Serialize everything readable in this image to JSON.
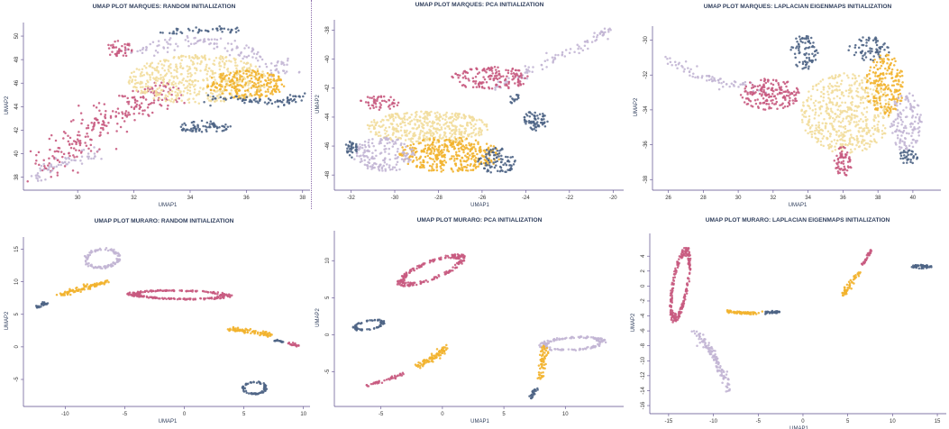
{
  "colors": {
    "rose": "#c85a80",
    "lavender": "#c2b5d4",
    "cream": "#f2dd9c",
    "gold": "#f2b22e",
    "slate": "#4e6485",
    "axis": "#5a4a8a",
    "title": "#2f3e5c"
  },
  "chart_data": [
    {
      "type": "scatter",
      "title": "UMAP PLOT MARQUES: RANDOM INITIALIZATION",
      "xlabel": "UMAP1",
      "ylabel": "UMAP2",
      "xlim": [
        28.2,
        38.2
      ],
      "ylim": [
        37.2,
        51
      ],
      "xticks": [
        30,
        32,
        34,
        36,
        38
      ],
      "yticks": [
        38,
        40,
        42,
        44,
        46,
        48,
        50
      ],
      "clusters": [
        {
          "color": "rose",
          "type": "arc",
          "points": [
            [
              28.8,
              38.8
            ],
            [
              29.6,
              40.4
            ],
            [
              30.5,
              42.0
            ],
            [
              31.5,
              43.3
            ],
            [
              32.4,
              44.5
            ],
            [
              33.3,
              45.5
            ]
          ],
          "width": 1.2,
          "n": 260
        },
        {
          "color": "rose",
          "type": "blob",
          "cx": 31.5,
          "cy": 48.9,
          "rx": 0.5,
          "ry": 0.7,
          "n": 45
        },
        {
          "color": "lavender",
          "type": "arc",
          "points": [
            [
              28.4,
              37.8
            ],
            [
              29.0,
              38.8
            ],
            [
              29.8,
              39.5
            ],
            [
              30.6,
              40.0
            ]
          ],
          "width": 0.6,
          "n": 60
        },
        {
          "color": "lavender",
          "type": "arc",
          "points": [
            [
              32.2,
              48.5
            ],
            [
              33.5,
              49.6
            ],
            [
              35.0,
              49.4
            ],
            [
              36.3,
              48.4
            ],
            [
              37.4,
              46.8
            ]
          ],
          "width": 0.7,
          "n": 130
        },
        {
          "color": "cream",
          "type": "blob",
          "cx": 34.3,
          "cy": 46.3,
          "rx": 2.5,
          "ry": 2.1,
          "n": 520
        },
        {
          "color": "gold",
          "type": "blob",
          "cx": 36.0,
          "cy": 45.9,
          "rx": 1.4,
          "ry": 1.2,
          "n": 230
        },
        {
          "color": "slate",
          "type": "blob",
          "cx": 34.5,
          "cy": 42.3,
          "rx": 1.0,
          "ry": 0.5,
          "n": 75
        },
        {
          "color": "slate",
          "type": "arc",
          "points": [
            [
              34.8,
              44.7
            ],
            [
              36.0,
              44.5
            ],
            [
              37.3,
              44.4
            ],
            [
              38.0,
              45.0
            ]
          ],
          "width": 0.4,
          "n": 80
        },
        {
          "color": "slate",
          "type": "arc",
          "points": [
            [
              33.0,
              50.3
            ],
            [
              34.5,
              50.5
            ],
            [
              35.8,
              50.6
            ]
          ],
          "width": 0.3,
          "n": 45
        }
      ]
    },
    {
      "type": "scatter",
      "title": "UMAP PLOT MARQUES: PCA INITIALIZATION",
      "xlabel": "UMAP1",
      "ylabel": "UMAP2",
      "xlim": [
        -32.6,
        -19.6
      ],
      "ylim": [
        -48.8,
        -37.4
      ],
      "xticks": [
        -32,
        -30,
        -28,
        -26,
        -24,
        -22,
        -20
      ],
      "yticks": [
        -38,
        -40,
        -42,
        -44,
        -46,
        -48
      ],
      "clusters": [
        {
          "color": "lavender",
          "type": "arc",
          "points": [
            [
              -25.5,
              -42.0
            ],
            [
              -23.8,
              -40.8
            ],
            [
              -22.0,
              -39.5
            ],
            [
              -20.2,
              -38.0
            ]
          ],
          "width": 0.4,
          "n": 90
        },
        {
          "color": "rose",
          "type": "blob",
          "cx": -25.6,
          "cy": -41.3,
          "rx": 1.8,
          "ry": 0.8,
          "n": 160
        },
        {
          "color": "rose",
          "type": "blob",
          "cx": -30.7,
          "cy": -43.0,
          "rx": 0.9,
          "ry": 0.5,
          "n": 50
        },
        {
          "color": "slate",
          "type": "blob",
          "cx": -23.6,
          "cy": -44.3,
          "rx": 0.6,
          "ry": 0.7,
          "n": 70
        },
        {
          "color": "slate",
          "type": "arc",
          "points": [
            [
              -24.6,
              -43.0
            ],
            [
              -24.2,
              -42.1
            ]
          ],
          "width": 0.2,
          "n": 15
        },
        {
          "color": "cream",
          "type": "blob",
          "cx": -28.5,
          "cy": -44.7,
          "rx": 2.8,
          "ry": 1.1,
          "n": 420
        },
        {
          "color": "gold",
          "type": "blob",
          "cx": -27.5,
          "cy": -46.6,
          "rx": 2.4,
          "ry": 1.2,
          "n": 380
        },
        {
          "color": "lavender",
          "type": "blob",
          "cx": -30.5,
          "cy": -46.6,
          "rx": 1.4,
          "ry": 1.2,
          "n": 160
        },
        {
          "color": "slate",
          "type": "blob",
          "cx": -25.3,
          "cy": -47.0,
          "rx": 0.9,
          "ry": 0.9,
          "n": 90
        },
        {
          "color": "slate",
          "type": "blob",
          "cx": -32.0,
          "cy": -46.2,
          "rx": 0.3,
          "ry": 0.6,
          "n": 35
        }
      ]
    },
    {
      "type": "scatter",
      "title": "UMAP PLOT MARQUES: LAPLACIAN EIGENMAPS INITIALIZATION",
      "xlabel": "UMAP1",
      "ylabel": "UMAP2",
      "xlim": [
        25.3,
        41.5
      ],
      "ylim": [
        -38.4,
        -29.3
      ],
      "xticks": [
        26,
        28,
        30,
        32,
        34,
        36,
        38,
        40
      ],
      "yticks": [
        -30,
        -32,
        -34,
        -36,
        -38
      ],
      "clusters": [
        {
          "color": "lavender",
          "type": "arc",
          "points": [
            [
              25.9,
              -31.0
            ],
            [
              27.2,
              -31.8
            ],
            [
              28.6,
              -32.3
            ],
            [
              30.0,
              -32.6
            ],
            [
              31.5,
              -32.8
            ]
          ],
          "width": 0.35,
          "n": 75
        },
        {
          "color": "rose",
          "type": "blob",
          "cx": 31.8,
          "cy": -33.1,
          "rx": 1.7,
          "ry": 0.9,
          "n": 180
        },
        {
          "color": "slate",
          "type": "blob",
          "cx": 33.8,
          "cy": -30.7,
          "rx": 0.8,
          "ry": 1.0,
          "n": 80
        },
        {
          "color": "slate",
          "type": "blob",
          "cx": 37.5,
          "cy": -30.5,
          "rx": 1.2,
          "ry": 0.7,
          "n": 70
        },
        {
          "color": "cream",
          "type": "blob",
          "cx": 36.2,
          "cy": -34.2,
          "rx": 2.6,
          "ry": 2.3,
          "n": 520
        },
        {
          "color": "gold",
          "type": "blob",
          "cx": 38.4,
          "cy": -32.6,
          "rx": 1.1,
          "ry": 1.8,
          "n": 200
        },
        {
          "color": "lavender",
          "type": "blob",
          "cx": 39.6,
          "cy": -34.7,
          "rx": 0.9,
          "ry": 1.7,
          "n": 130
        },
        {
          "color": "rose",
          "type": "blob",
          "cx": 36.0,
          "cy": -37.0,
          "rx": 0.5,
          "ry": 0.9,
          "n": 65
        },
        {
          "color": "slate",
          "type": "blob",
          "cx": 39.7,
          "cy": -36.7,
          "rx": 0.6,
          "ry": 0.4,
          "n": 35
        }
      ]
    },
    {
      "type": "scatter",
      "title": "UMAP PLOT MURARO: RANDOM INITIALIZATION",
      "xlabel": "UMAP1",
      "ylabel": "UMAP2",
      "xlim": [
        -13.2,
        10.4
      ],
      "ylim": [
        -8.6,
        16.6
      ],
      "xticks": [
        -10,
        -5,
        0,
        5,
        10
      ],
      "yticks": [
        -5,
        0,
        5,
        10,
        15
      ],
      "clusters": [
        {
          "color": "lavender",
          "type": "ring",
          "cx": -6.9,
          "cy": 13.6,
          "rx": 1.4,
          "ry": 1.6,
          "angle": -40,
          "n": 110
        },
        {
          "color": "gold",
          "type": "arc",
          "points": [
            [
              -10.5,
              8.0
            ],
            [
              -8.5,
              9.0
            ],
            [
              -6.3,
              10.2
            ]
          ],
          "width": 0.4,
          "n": 100
        },
        {
          "color": "slate",
          "type": "arc",
          "points": [
            [
              -12.4,
              6.0
            ],
            [
              -11.6,
              6.8
            ]
          ],
          "width": 0.3,
          "n": 25
        },
        {
          "color": "rose",
          "type": "ring",
          "cx": -0.4,
          "cy": 8.0,
          "rx": 4.2,
          "ry": 0.7,
          "angle": -2,
          "n": 230
        },
        {
          "color": "gold",
          "type": "arc",
          "points": [
            [
              3.7,
              2.7
            ],
            [
              5.6,
              2.4
            ],
            [
              7.2,
              1.8
            ]
          ],
          "width": 0.4,
          "n": 90
        },
        {
          "color": "slate",
          "type": "arc",
          "points": [
            [
              7.5,
              1.0
            ],
            [
              8.3,
              0.8
            ]
          ],
          "width": 0.2,
          "n": 15
        },
        {
          "color": "rose",
          "type": "arc",
          "points": [
            [
              8.7,
              0.6
            ],
            [
              9.6,
              0.1
            ]
          ],
          "width": 0.2,
          "n": 20
        },
        {
          "color": "slate",
          "type": "ring",
          "cx": 5.9,
          "cy": -6.3,
          "rx": 1.0,
          "ry": 1.0,
          "angle": -30,
          "n": 70
        }
      ]
    },
    {
      "type": "scatter",
      "title": "UMAP PLOT MURARO: PCA INITIALIZATION",
      "xlabel": "UMAP1",
      "ylabel": "UMAP2",
      "xlim": [
        -8.5,
        14.6
      ],
      "ylim": [
        -9.2,
        13.8
      ],
      "xticks": [
        -5,
        0,
        5,
        10
      ],
      "yticks": [
        -5,
        0,
        5,
        10
      ],
      "clusters": [
        {
          "color": "rose",
          "type": "ring",
          "cx": -0.9,
          "cy": 8.7,
          "rx": 3.2,
          "ry": 1.1,
          "angle": 36,
          "n": 200
        },
        {
          "color": "slate",
          "type": "ring",
          "cx": -6.0,
          "cy": 1.3,
          "rx": 1.3,
          "ry": 0.6,
          "angle": 20,
          "n": 70
        },
        {
          "color": "gold",
          "type": "arc",
          "points": [
            [
              -2.2,
              -4.3
            ],
            [
              -0.9,
              -3.3
            ],
            [
              0.3,
              -1.8
            ]
          ],
          "width": 0.45,
          "n": 85
        },
        {
          "color": "rose",
          "type": "arc",
          "points": [
            [
              -6.6,
              -7.1
            ],
            [
              -4.8,
              -6.2
            ],
            [
              -3.2,
              -5.3
            ]
          ],
          "width": 0.25,
          "n": 40
        },
        {
          "color": "lavender",
          "type": "ring",
          "cx": 10.6,
          "cy": -1.2,
          "rx": 2.6,
          "ry": 0.9,
          "angle": 6,
          "n": 150
        },
        {
          "color": "gold",
          "type": "arc",
          "points": [
            [
              7.9,
              -6.2
            ],
            [
              8.2,
              -3.8
            ],
            [
              8.3,
              -1.5
            ]
          ],
          "width": 0.35,
          "n": 60
        },
        {
          "color": "slate",
          "type": "arc",
          "points": [
            [
              7.2,
              -8.5
            ],
            [
              7.7,
              -7.2
            ]
          ],
          "width": 0.25,
          "n": 25
        }
      ]
    },
    {
      "type": "scatter",
      "title": "UMAP PLOT MURARO: LAPLACIAN EIGENMAPS INITIALIZATION",
      "xlabel": "UMAP1",
      "ylabel": "UMAP2",
      "xlim": [
        -16.7,
        15.8
      ],
      "ylim": [
        -16.6,
        6.8
      ],
      "xticks": [
        -15,
        -10,
        -5,
        0,
        5,
        10,
        15
      ],
      "yticks": [
        4,
        2,
        0,
        -2,
        -4,
        -6,
        -8,
        -10,
        -12,
        -14,
        -16
      ],
      "clusters": [
        {
          "color": "rose",
          "type": "ring",
          "cx": -13.7,
          "cy": 0.2,
          "rx": 4.9,
          "ry": 0.9,
          "angle": 82,
          "n": 220
        },
        {
          "color": "lavender",
          "type": "arc",
          "points": [
            [
              -12.0,
              -5.8
            ],
            [
              -10.5,
              -8.5
            ],
            [
              -9.2,
              -11.0
            ],
            [
              -8.2,
              -13.8
            ]
          ],
          "width": 0.6,
          "n": 120
        },
        {
          "color": "gold",
          "type": "arc",
          "points": [
            [
              -8.7,
              -3.4
            ],
            [
              -6.5,
              -3.6
            ],
            [
              -4.6,
              -3.6
            ]
          ],
          "width": 0.22,
          "n": 60
        },
        {
          "color": "slate",
          "type": "arc",
          "points": [
            [
              -4.3,
              -3.6
            ],
            [
              -2.5,
              -3.4
            ]
          ],
          "width": 0.22,
          "n": 35
        },
        {
          "color": "gold",
          "type": "arc",
          "points": [
            [
              4.5,
              -1.3
            ],
            [
              5.2,
              0.2
            ],
            [
              6.2,
              1.8
            ]
          ],
          "width": 0.35,
          "n": 55
        },
        {
          "color": "rose",
          "type": "arc",
          "points": [
            [
              6.6,
              2.8
            ],
            [
              7.2,
              3.8
            ],
            [
              7.5,
              4.8
            ]
          ],
          "width": 0.2,
          "n": 30
        },
        {
          "color": "slate",
          "type": "blob",
          "cx": 13.2,
          "cy": 2.6,
          "rx": 1.2,
          "ry": 0.25,
          "n": 55
        }
      ]
    }
  ]
}
